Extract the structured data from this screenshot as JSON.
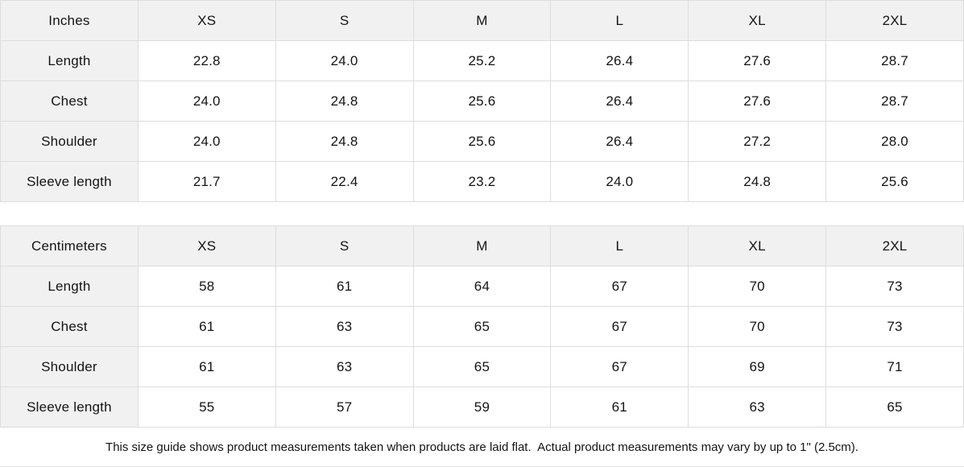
{
  "tables": [
    {
      "id": "inches",
      "unit_label": "Inches",
      "columns": [
        "XS",
        "S",
        "M",
        "L",
        "XL",
        "2XL"
      ],
      "rows": [
        {
          "label": "Length",
          "values": [
            "22.8",
            "24.0",
            "25.2",
            "26.4",
            "27.6",
            "28.7"
          ]
        },
        {
          "label": "Chest",
          "values": [
            "24.0",
            "24.8",
            "25.6",
            "26.4",
            "27.6",
            "28.7"
          ]
        },
        {
          "label": "Shoulder",
          "values": [
            "24.0",
            "24.8",
            "25.6",
            "26.4",
            "27.2",
            "28.0"
          ]
        },
        {
          "label": "Sleeve length",
          "values": [
            "21.7",
            "22.4",
            "23.2",
            "24.0",
            "24.8",
            "25.6"
          ]
        }
      ]
    },
    {
      "id": "centimeters",
      "unit_label": "Centimeters",
      "columns": [
        "XS",
        "S",
        "M",
        "L",
        "XL",
        "2XL"
      ],
      "rows": [
        {
          "label": "Length",
          "values": [
            "58",
            "61",
            "64",
            "67",
            "70",
            "73"
          ]
        },
        {
          "label": "Chest",
          "values": [
            "61",
            "63",
            "65",
            "67",
            "70",
            "73"
          ]
        },
        {
          "label": "Shoulder",
          "values": [
            "61",
            "63",
            "65",
            "67",
            "69",
            "71"
          ]
        },
        {
          "label": "Sleeve length",
          "values": [
            "55",
            "57",
            "59",
            "61",
            "63",
            "65"
          ]
        }
      ]
    }
  ],
  "note": "This size guide shows product measurements taken when products are laid flat.  Actual product measurements may vary by up to 1\" (2.5cm).",
  "colors": {
    "header_bg": "#f1f1f1",
    "grid_line": "#dddddd",
    "cell_bg": "#ffffff",
    "text": "#141414"
  }
}
